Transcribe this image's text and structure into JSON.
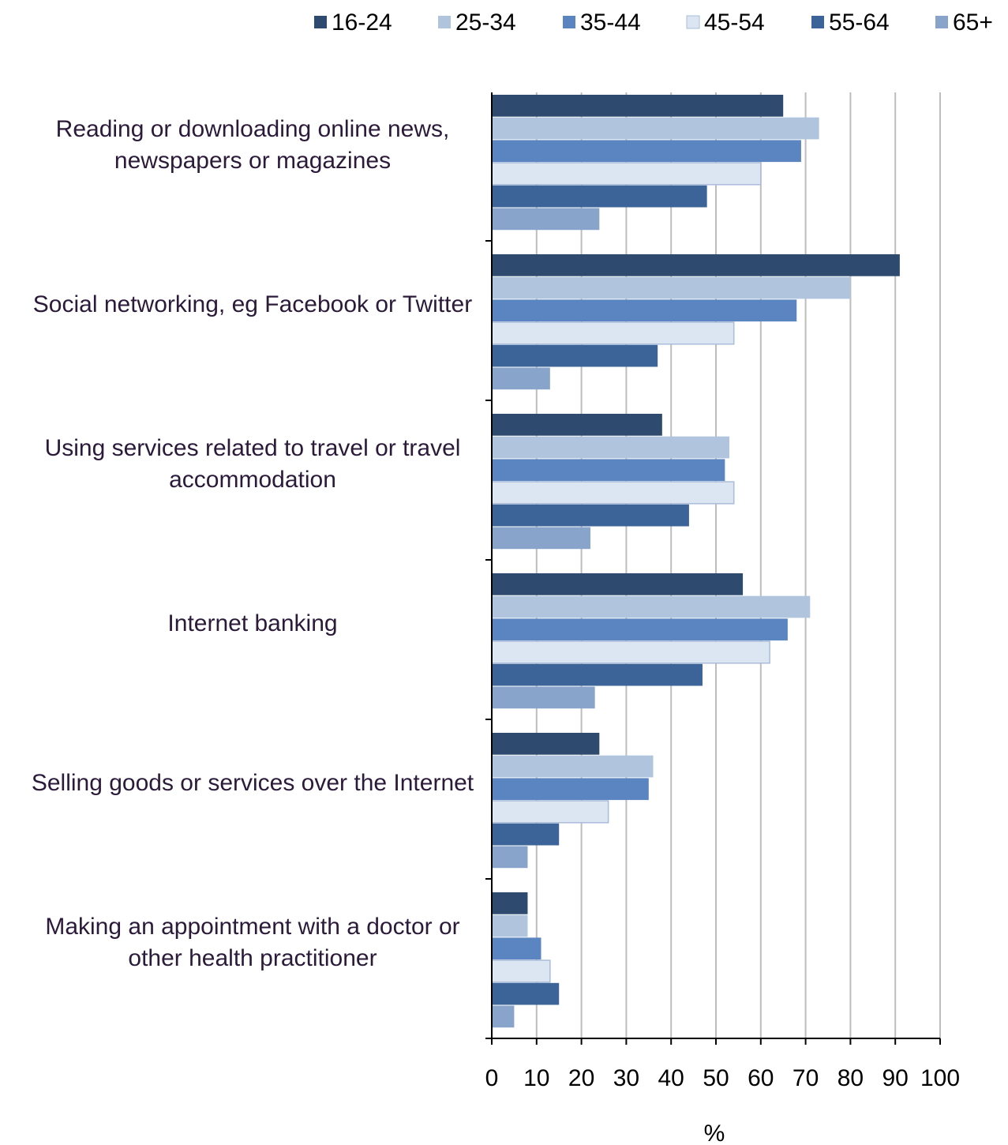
{
  "chart_data": {
    "type": "hbar",
    "categories": [
      "Reading or downloading online news, newspapers or magazines",
      "Social networking, eg Facebook or Twitter",
      "Using services related to travel or travel accommodation",
      "Internet banking",
      "Selling goods or services over the Internet",
      "Making an appointment with a doctor or other health practitioner"
    ],
    "series": [
      {
        "name": "16-24",
        "color": "#2e4a6e",
        "values": [
          65,
          91,
          38,
          56,
          24,
          8
        ]
      },
      {
        "name": "25-34",
        "color": "#b0c4de",
        "values": [
          73,
          80,
          53,
          71,
          36,
          8
        ]
      },
      {
        "name": "35-44",
        "color": "#5b85c0",
        "values": [
          69,
          68,
          52,
          66,
          35,
          11
        ]
      },
      {
        "name": "45-54",
        "color": "#dce6f2",
        "values": [
          60,
          54,
          54,
          62,
          26,
          13
        ]
      },
      {
        "name": "55-64",
        "color": "#3d6499",
        "values": [
          48,
          37,
          44,
          47,
          15,
          15
        ]
      },
      {
        "name": "65+",
        "color": "#88a4cb",
        "values": [
          24,
          13,
          22,
          23,
          8,
          5
        ]
      }
    ],
    "x_label": "%",
    "xlim": [
      0,
      100
    ],
    "xticks": [
      0,
      10,
      20,
      30,
      40,
      50,
      60,
      70,
      80,
      90,
      100
    ],
    "grid": true,
    "legend": "top"
  }
}
